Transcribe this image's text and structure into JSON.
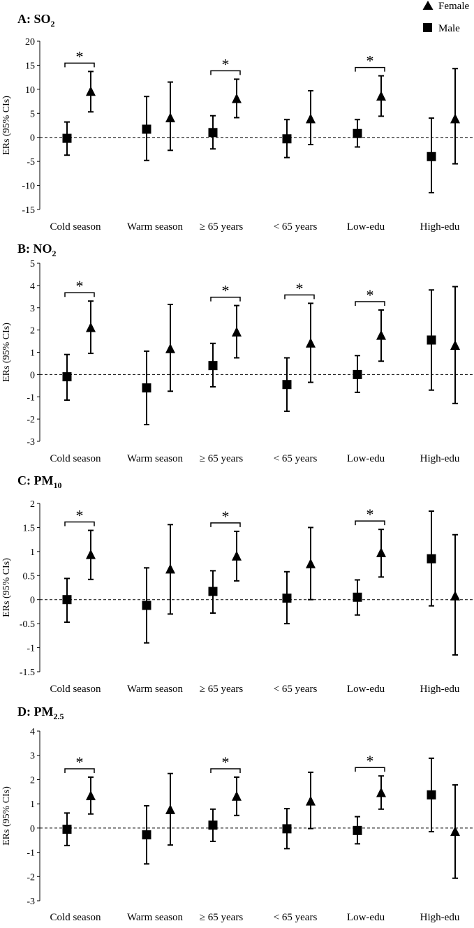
{
  "legend": {
    "female": "Female",
    "male": "Male"
  },
  "chart_data": [
    {
      "type": "scatter",
      "panel": "A",
      "title": "A: SO",
      "title_sub": "2",
      "ylabel": "ERs (95% CIs)",
      "ylim": [
        -15,
        20
      ],
      "yticks": [
        -15,
        -10,
        -5,
        0,
        5,
        10,
        15,
        20
      ],
      "categories": [
        "Cold season",
        "Warm season",
        "≥ 65 years",
        "< 65 years",
        "Low-edu",
        "High-edu"
      ],
      "reference_line": 0,
      "series": [
        {
          "name": "Male",
          "marker": "square",
          "values": [
            -0.2,
            1.7,
            1.0,
            -0.3,
            0.8,
            -4.0
          ],
          "lower": [
            -3.7,
            -4.8,
            -2.4,
            -4.2,
            -2.0,
            -11.5
          ],
          "upper": [
            3.2,
            8.5,
            4.5,
            3.7,
            3.7,
            4.0
          ]
        },
        {
          "name": "Female",
          "marker": "triangle",
          "values": [
            9.5,
            4.0,
            8.0,
            3.8,
            8.5,
            3.8
          ],
          "lower": [
            5.3,
            -2.7,
            4.1,
            -1.5,
            4.4,
            -5.5
          ],
          "upper": [
            13.7,
            11.5,
            12.1,
            9.7,
            12.8,
            14.3
          ]
        }
      ],
      "significance": [
        {
          "category": "Cold season",
          "label": "*"
        },
        {
          "category": "≥ 65 years",
          "label": "*"
        },
        {
          "category": "Low-edu",
          "label": "*"
        }
      ]
    },
    {
      "type": "scatter",
      "panel": "B",
      "title": "B: NO",
      "title_sub": "2",
      "ylabel": "ERs (95% CIs)",
      "ylim": [
        -3,
        5
      ],
      "yticks": [
        -3,
        -2,
        -1,
        0,
        1,
        2,
        3,
        4,
        5
      ],
      "categories": [
        "Cold season",
        "Warm season",
        "≥ 65 years",
        "< 65 years",
        "Low-edu",
        "High-edu"
      ],
      "reference_line": 0,
      "series": [
        {
          "name": "Male",
          "marker": "square",
          "values": [
            -0.1,
            -0.6,
            0.4,
            -0.45,
            0.0,
            1.55
          ],
          "lower": [
            -1.15,
            -2.25,
            -0.55,
            -1.65,
            -0.8,
            -0.7
          ],
          "upper": [
            0.9,
            1.05,
            1.4,
            0.75,
            0.85,
            3.8
          ]
        },
        {
          "name": "Female",
          "marker": "triangle",
          "values": [
            2.1,
            1.15,
            1.9,
            1.4,
            1.75,
            1.3
          ],
          "lower": [
            0.95,
            -0.75,
            0.75,
            -0.35,
            0.6,
            -1.3
          ],
          "upper": [
            3.3,
            3.15,
            3.1,
            3.2,
            2.9,
            3.95
          ]
        }
      ],
      "significance": [
        {
          "category": "Cold season",
          "label": "*"
        },
        {
          "category": "≥ 65 years",
          "label": "*"
        },
        {
          "category": "< 65 years",
          "label": "*"
        },
        {
          "category": "Low-edu",
          "label": "*"
        }
      ]
    },
    {
      "type": "scatter",
      "panel": "C",
      "title": "C: PM",
      "title_sub": "10",
      "ylabel": "ERs (95% CIs)",
      "ylim": [
        -1.5,
        2
      ],
      "yticks": [
        -1.5,
        -1,
        -0.5,
        0,
        0.5,
        1,
        1.5,
        2
      ],
      "categories": [
        "Cold season",
        "Warm season",
        "≥ 65 years",
        "< 65 years",
        "Low-edu",
        "High-edu"
      ],
      "reference_line": 0,
      "series": [
        {
          "name": "Male",
          "marker": "square",
          "values": [
            0.0,
            -0.12,
            0.17,
            0.03,
            0.05,
            0.85
          ],
          "lower": [
            -0.47,
            -0.9,
            -0.28,
            -0.5,
            -0.32,
            -0.13
          ],
          "upper": [
            0.44,
            0.66,
            0.6,
            0.58,
            0.41,
            1.84
          ]
        },
        {
          "name": "Female",
          "marker": "triangle",
          "values": [
            0.93,
            0.63,
            0.9,
            0.74,
            0.97,
            0.07
          ],
          "lower": [
            0.42,
            -0.3,
            0.39,
            0.0,
            0.47,
            -1.15
          ],
          "upper": [
            1.44,
            1.56,
            1.42,
            1.5,
            1.46,
            1.35
          ]
        }
      ],
      "significance": [
        {
          "category": "Cold season",
          "label": "*"
        },
        {
          "category": "≥ 65 years",
          "label": "*"
        },
        {
          "category": "Low-edu",
          "label": "*"
        }
      ]
    },
    {
      "type": "scatter",
      "panel": "D",
      "title": "D: PM",
      "title_sub": "2.5",
      "ylabel": "ERs (95% CIs)",
      "ylim": [
        -3,
        4
      ],
      "yticks": [
        -3,
        -2,
        -1,
        0,
        1,
        2,
        3,
        4
      ],
      "categories": [
        "Cold season",
        "Warm season",
        "≥ 65 years",
        "< 65 years",
        "Low-edu",
        "High-edu"
      ],
      "reference_line": 0,
      "series": [
        {
          "name": "Male",
          "marker": "square",
          "values": [
            -0.05,
            -0.28,
            0.12,
            -0.03,
            -0.1,
            1.37
          ],
          "lower": [
            -0.72,
            -1.48,
            -0.55,
            -0.85,
            -0.65,
            -0.15
          ],
          "upper": [
            0.62,
            0.92,
            0.78,
            0.8,
            0.47,
            2.88
          ]
        },
        {
          "name": "Female",
          "marker": "triangle",
          "values": [
            1.32,
            0.75,
            1.3,
            1.1,
            1.45,
            -0.15
          ],
          "lower": [
            0.58,
            -0.7,
            0.52,
            -0.02,
            0.78,
            -2.07
          ],
          "upper": [
            2.1,
            2.25,
            2.1,
            2.3,
            2.15,
            1.78
          ]
        }
      ],
      "significance": [
        {
          "category": "Cold season",
          "label": "*"
        },
        {
          "category": "≥ 65 years",
          "label": "*"
        },
        {
          "category": "Low-edu",
          "label": "*"
        }
      ]
    }
  ]
}
